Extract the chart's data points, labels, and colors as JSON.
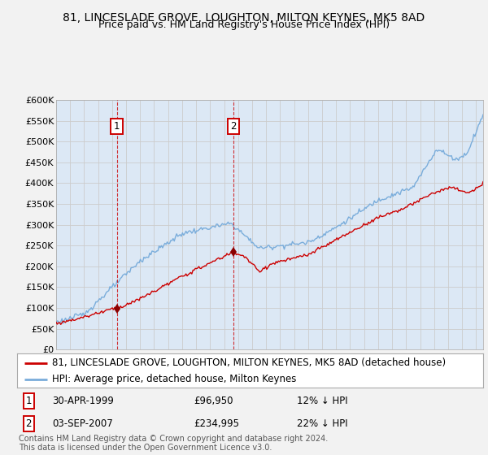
{
  "title_line1": "81, LINCESLADE GROVE, LOUGHTON, MILTON KEYNES, MK5 8AD",
  "title_line2": "Price paid vs. HM Land Registry's House Price Index (HPI)",
  "yticks": [
    0,
    50000,
    100000,
    150000,
    200000,
    250000,
    300000,
    350000,
    400000,
    450000,
    500000,
    550000,
    600000
  ],
  "ytick_labels": [
    "£0",
    "£50K",
    "£100K",
    "£150K",
    "£200K",
    "£250K",
    "£300K",
    "£350K",
    "£400K",
    "£450K",
    "£500K",
    "£550K",
    "£600K"
  ],
  "hpi_color": "#7aaddb",
  "price_color": "#cc0000",
  "grid_color": "#cccccc",
  "background_color": "#dce8f5",
  "legend_label_price": "81, LINCESLADE GROVE, LOUGHTON, MILTON KEYNES, MK5 8AD (detached house)",
  "legend_label_hpi": "HPI: Average price, detached house, Milton Keynes",
  "sale1_date_label": "30-APR-1999",
  "sale1_price_label": "£96,950",
  "sale1_hpi_label": "12% ↓ HPI",
  "sale1_x": 1999.33,
  "sale1_y": 96950,
  "sale2_date_label": "03-SEP-2007",
  "sale2_price_label": "£234,995",
  "sale2_hpi_label": "22% ↓ HPI",
  "sale2_x": 2007.67,
  "sale2_y": 234995,
  "xmin": 1995.0,
  "xmax": 2025.5,
  "ymin": 0,
  "ymax": 600000,
  "footer_text": "Contains HM Land Registry data © Crown copyright and database right 2024.\nThis data is licensed under the Open Government Licence v3.0.",
  "title_fontsize": 10,
  "subtitle_fontsize": 9,
  "tick_fontsize": 8,
  "legend_fontsize": 8.5,
  "footer_fontsize": 7
}
